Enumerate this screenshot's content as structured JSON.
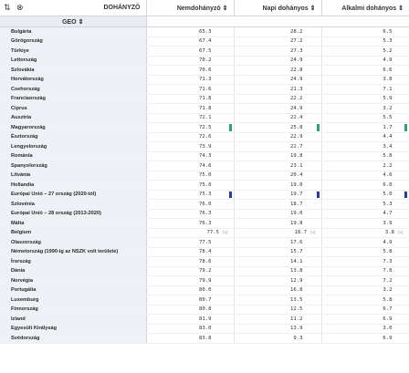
{
  "header": {
    "sort_icon": "⇅",
    "close_icon": "⊗",
    "dim_label": "DOHÁNYZÓ",
    "columns": [
      "Nemdohányzó ⇕",
      "Napi dohányos ⇕",
      "Alkalmi dohányos ⇕"
    ],
    "geo_label": "GEO ⇕"
  },
  "flag_text": "(u)",
  "colors": {
    "green_marker": "#2aa37a",
    "blue_marker": "#1f3f9a"
  },
  "rows": [
    {
      "geo": "Bulgária",
      "a": "65.3",
      "b": "28.2",
      "c": "6.5"
    },
    {
      "geo": "Görögország",
      "a": "67.4",
      "b": "27.2",
      "c": "5.3"
    },
    {
      "geo": "Türkiye",
      "a": "67.5",
      "b": "27.3",
      "c": "5.2"
    },
    {
      "geo": "Lettország",
      "a": "70.2",
      "b": "24.9",
      "c": "4.9"
    },
    {
      "geo": "Szlovákia",
      "a": "70.6",
      "b": "22.8",
      "c": "6.6"
    },
    {
      "geo": "Horvátország",
      "a": "71.3",
      "b": "24.9",
      "c": "3.8"
    },
    {
      "geo": "Csehország",
      "a": "71.6",
      "b": "21.3",
      "c": "7.1"
    },
    {
      "geo": "Franciaország",
      "a": "71.8",
      "b": "22.2",
      "c": "5.9"
    },
    {
      "geo": "Ciprus",
      "a": "71.8",
      "b": "24.9",
      "c": "3.2"
    },
    {
      "geo": "Ausztria",
      "a": "72.1",
      "b": "22.4",
      "c": "5.5"
    },
    {
      "geo": "Magyarország",
      "a": "72.5",
      "b": "25.8",
      "c": "1.7",
      "marker": "green"
    },
    {
      "geo": "Észtország",
      "a": "72.6",
      "b": "22.9",
      "c": "4.4"
    },
    {
      "geo": "Lengyelország",
      "a": "73.9",
      "b": "22.7",
      "c": "3.4"
    },
    {
      "geo": "Románia",
      "a": "74.3",
      "b": "19.8",
      "c": "5.8"
    },
    {
      "geo": "Spanyolország",
      "a": "74.6",
      "b": "23.1",
      "c": "2.2"
    },
    {
      "geo": "Litvánia",
      "a": "75.0",
      "b": "20.4",
      "c": "4.6"
    },
    {
      "geo": "Hollandia",
      "a": "75.0",
      "b": "19.0",
      "c": "6.0"
    },
    {
      "geo": "Európai Unió – 27 ország (2020-tól)",
      "a": "75.3",
      "b": "19.7",
      "c": "5.0",
      "marker": "blue"
    },
    {
      "geo": "Szlovénia",
      "a": "76.0",
      "b": "18.7",
      "c": "5.3"
    },
    {
      "geo": "Európai Unió – 28 ország (2013-2020)",
      "a": "76.3",
      "b": "19.0",
      "c": "4.7"
    },
    {
      "geo": "Málta",
      "a": "76.3",
      "b": "19.8",
      "c": "3.9"
    },
    {
      "geo": "Belgium",
      "a": "77.5",
      "b": "18.7",
      "c": "3.8",
      "flag": true
    },
    {
      "geo": "Olaszország",
      "a": "77.5",
      "b": "17.6",
      "c": "4.9"
    },
    {
      "geo": "Németország (1990-ig az NSZK volt területe)",
      "a": "78.4",
      "b": "15.7",
      "c": "5.8"
    },
    {
      "geo": "Írország",
      "a": "78.6",
      "b": "14.1",
      "c": "7.3"
    },
    {
      "geo": "Dánia",
      "a": "79.2",
      "b": "13.8",
      "c": "7.0"
    },
    {
      "geo": "Norvégia",
      "a": "79.9",
      "b": "12.9",
      "c": "7.2"
    },
    {
      "geo": "Portugália",
      "a": "80.0",
      "b": "16.8",
      "c": "3.2"
    },
    {
      "geo": "Luxemburg",
      "a": "80.7",
      "b": "13.5",
      "c": "5.8"
    },
    {
      "geo": "Finnország",
      "a": "80.8",
      "b": "12.5",
      "c": "6.7"
    },
    {
      "geo": "Izland",
      "a": "81.9",
      "b": "11.2",
      "c": "6.9"
    },
    {
      "geo": "Egyesült Királyság",
      "a": "83.0",
      "b": "13.9",
      "c": "3.0"
    },
    {
      "geo": "Svédország",
      "a": "83.8",
      "b": "9.3",
      "c": "6.9"
    }
  ]
}
